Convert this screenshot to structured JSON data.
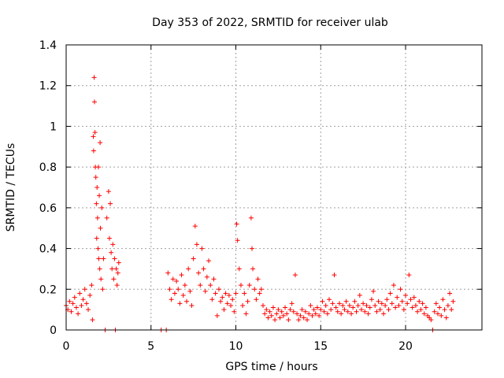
{
  "chart_data": {
    "type": "scatter",
    "title": "Day 353 of 2022, SRMTID for receiver ulab",
    "xlabel": "GPS time / hours",
    "ylabel": "SRMTID / TECUs",
    "xlim": [
      0,
      24.5
    ],
    "ylim": [
      0,
      1.4
    ],
    "x_ticks": [
      0,
      5,
      10,
      15,
      20
    ],
    "x_tick_labels": [
      "0",
      "5",
      "10",
      "15",
      "20"
    ],
    "y_ticks": [
      0,
      0.2,
      0.4,
      0.6,
      0.8,
      1.0,
      1.2,
      1.4
    ],
    "y_tick_labels": [
      "0",
      "0.2",
      "0.4",
      "0.6",
      "0.8",
      "1",
      "1.2",
      "1.4"
    ],
    "grid": true,
    "marker": "+",
    "color": "#ff0000",
    "series": [
      {
        "name": "SRMTID",
        "points": [
          [
            0.0,
            0.12
          ],
          [
            0.1,
            0.1
          ],
          [
            0.2,
            0.14
          ],
          [
            0.3,
            0.09
          ],
          [
            0.4,
            0.13
          ],
          [
            0.5,
            0.16
          ],
          [
            0.6,
            0.11
          ],
          [
            0.7,
            0.08
          ],
          [
            0.8,
            0.18
          ],
          [
            0.9,
            0.12
          ],
          [
            1.0,
            0.15
          ],
          [
            1.1,
            0.2
          ],
          [
            1.2,
            0.13
          ],
          [
            1.3,
            0.1
          ],
          [
            1.4,
            0.17
          ],
          [
            1.5,
            0.22
          ],
          [
            1.55,
            0.05
          ],
          [
            1.6,
            0.95
          ],
          [
            1.62,
            0.88
          ],
          [
            1.65,
            1.24
          ],
          [
            1.67,
            1.12
          ],
          [
            1.7,
            0.97
          ],
          [
            1.72,
            0.8
          ],
          [
            1.75,
            0.75
          ],
          [
            1.78,
            0.62
          ],
          [
            1.8,
            0.45
          ],
          [
            1.82,
            0.7
          ],
          [
            1.85,
            0.55
          ],
          [
            1.88,
            0.4
          ],
          [
            1.9,
            0.8
          ],
          [
            1.92,
            0.35
          ],
          [
            1.95,
            0.66
          ],
          [
            1.98,
            0.3
          ],
          [
            2.0,
            0.92
          ],
          [
            2.02,
            0.5
          ],
          [
            2.05,
            0.25
          ],
          [
            2.1,
            0.6
          ],
          [
            2.15,
            0.2
          ],
          [
            2.2,
            0.35
          ],
          [
            2.3,
            0.0
          ],
          [
            2.4,
            0.55
          ],
          [
            2.5,
            0.68
          ],
          [
            2.55,
            0.45
          ],
          [
            2.6,
            0.62
          ],
          [
            2.65,
            0.38
          ],
          [
            2.7,
            0.3
          ],
          [
            2.75,
            0.42
          ],
          [
            2.8,
            0.25
          ],
          [
            2.85,
            0.35
          ],
          [
            2.9,
            0.0
          ],
          [
            2.95,
            0.3
          ],
          [
            3.0,
            0.22
          ],
          [
            3.05,
            0.28
          ],
          [
            3.1,
            0.33
          ],
          [
            5.6,
            0.0
          ],
          [
            5.9,
            0.0
          ],
          [
            6.0,
            0.28
          ],
          [
            6.1,
            0.2
          ],
          [
            6.2,
            0.15
          ],
          [
            6.3,
            0.25
          ],
          [
            6.4,
            0.18
          ],
          [
            6.5,
            0.24
          ],
          [
            6.6,
            0.2
          ],
          [
            6.7,
            0.13
          ],
          [
            6.8,
            0.27
          ],
          [
            6.9,
            0.17
          ],
          [
            7.0,
            0.22
          ],
          [
            7.1,
            0.14
          ],
          [
            7.2,
            0.3
          ],
          [
            7.3,
            0.19
          ],
          [
            7.4,
            0.12
          ],
          [
            7.5,
            0.35
          ],
          [
            7.6,
            0.51
          ],
          [
            7.7,
            0.42
          ],
          [
            7.8,
            0.28
          ],
          [
            7.9,
            0.22
          ],
          [
            8.0,
            0.4
          ],
          [
            8.1,
            0.3
          ],
          [
            8.2,
            0.19
          ],
          [
            8.3,
            0.26
          ],
          [
            8.4,
            0.34
          ],
          [
            8.5,
            0.22
          ],
          [
            8.6,
            0.15
          ],
          [
            8.7,
            0.25
          ],
          [
            8.8,
            0.18
          ],
          [
            8.9,
            0.07
          ],
          [
            9.0,
            0.2
          ],
          [
            9.1,
            0.14
          ],
          [
            9.2,
            0.16
          ],
          [
            9.3,
            0.1
          ],
          [
            9.4,
            0.18
          ],
          [
            9.5,
            0.13
          ],
          [
            9.6,
            0.17
          ],
          [
            9.7,
            0.12
          ],
          [
            9.8,
            0.15
          ],
          [
            9.9,
            0.09
          ],
          [
            10.0,
            0.18
          ],
          [
            10.05,
            0.52
          ],
          [
            10.1,
            0.44
          ],
          [
            10.2,
            0.3
          ],
          [
            10.3,
            0.22
          ],
          [
            10.4,
            0.12
          ],
          [
            10.5,
            0.18
          ],
          [
            10.6,
            0.08
          ],
          [
            10.7,
            0.14
          ],
          [
            10.8,
            0.22
          ],
          [
            10.9,
            0.55
          ],
          [
            10.95,
            0.4
          ],
          [
            11.0,
            0.3
          ],
          [
            11.1,
            0.2
          ],
          [
            11.2,
            0.15
          ],
          [
            11.3,
            0.25
          ],
          [
            11.4,
            0.18
          ],
          [
            11.5,
            0.2
          ],
          [
            11.6,
            0.12
          ],
          [
            11.7,
            0.08
          ],
          [
            11.8,
            0.1
          ],
          [
            11.9,
            0.06
          ],
          [
            12.0,
            0.09
          ],
          [
            12.1,
            0.07
          ],
          [
            12.2,
            0.11
          ],
          [
            12.3,
            0.05
          ],
          [
            12.4,
            0.08
          ],
          [
            12.5,
            0.1
          ],
          [
            12.6,
            0.06
          ],
          [
            12.7,
            0.09
          ],
          [
            12.8,
            0.07
          ],
          [
            12.9,
            0.11
          ],
          [
            13.0,
            0.08
          ],
          [
            13.1,
            0.05
          ],
          [
            13.2,
            0.1
          ],
          [
            13.3,
            0.13
          ],
          [
            13.4,
            0.09
          ],
          [
            13.5,
            0.27
          ],
          [
            13.6,
            0.08
          ],
          [
            13.7,
            0.05
          ],
          [
            13.8,
            0.07
          ],
          [
            13.9,
            0.1
          ],
          [
            14.0,
            0.06
          ],
          [
            14.1,
            0.09
          ],
          [
            14.2,
            0.05
          ],
          [
            14.3,
            0.08
          ],
          [
            14.4,
            0.12
          ],
          [
            14.5,
            0.07
          ],
          [
            14.6,
            0.1
          ],
          [
            14.7,
            0.08
          ],
          [
            14.8,
            0.11
          ],
          [
            14.9,
            0.07
          ],
          [
            15.0,
            0.1
          ],
          [
            15.1,
            0.14
          ],
          [
            15.2,
            0.09
          ],
          [
            15.3,
            0.12
          ],
          [
            15.4,
            0.08
          ],
          [
            15.5,
            0.15
          ],
          [
            15.6,
            0.1
          ],
          [
            15.7,
            0.13
          ],
          [
            15.8,
            0.27
          ],
          [
            15.9,
            0.11
          ],
          [
            16.0,
            0.09
          ],
          [
            16.1,
            0.13
          ],
          [
            16.2,
            0.08
          ],
          [
            16.3,
            0.12
          ],
          [
            16.4,
            0.1
          ],
          [
            16.5,
            0.14
          ],
          [
            16.6,
            0.09
          ],
          [
            16.7,
            0.12
          ],
          [
            16.8,
            0.08
          ],
          [
            16.9,
            0.11
          ],
          [
            17.0,
            0.14
          ],
          [
            17.1,
            0.09
          ],
          [
            17.2,
            0.12
          ],
          [
            17.3,
            0.17
          ],
          [
            17.4,
            0.1
          ],
          [
            17.5,
            0.13
          ],
          [
            17.6,
            0.09
          ],
          [
            17.7,
            0.12
          ],
          [
            17.8,
            0.08
          ],
          [
            17.9,
            0.11
          ],
          [
            18.0,
            0.15
          ],
          [
            18.1,
            0.19
          ],
          [
            18.2,
            0.12
          ],
          [
            18.3,
            0.09
          ],
          [
            18.4,
            0.14
          ],
          [
            18.5,
            0.1
          ],
          [
            18.6,
            0.13
          ],
          [
            18.7,
            0.08
          ],
          [
            18.8,
            0.12
          ],
          [
            18.9,
            0.15
          ],
          [
            19.0,
            0.1
          ],
          [
            19.1,
            0.18
          ],
          [
            19.2,
            0.13
          ],
          [
            19.3,
            0.22
          ],
          [
            19.4,
            0.11
          ],
          [
            19.5,
            0.16
          ],
          [
            19.6,
            0.12
          ],
          [
            19.7,
            0.2
          ],
          [
            19.8,
            0.14
          ],
          [
            19.9,
            0.1
          ],
          [
            20.0,
            0.17
          ],
          [
            20.1,
            0.13
          ],
          [
            20.2,
            0.27
          ],
          [
            20.3,
            0.15
          ],
          [
            20.4,
            0.11
          ],
          [
            20.5,
            0.16
          ],
          [
            20.6,
            0.12
          ],
          [
            20.7,
            0.09
          ],
          [
            20.8,
            0.14
          ],
          [
            20.9,
            0.1
          ],
          [
            21.0,
            0.13
          ],
          [
            21.1,
            0.08
          ],
          [
            21.2,
            0.11
          ],
          [
            21.3,
            0.07
          ],
          [
            21.4,
            0.06
          ],
          [
            21.5,
            0.05
          ],
          [
            21.6,
            0.0
          ],
          [
            21.7,
            0.09
          ],
          [
            21.8,
            0.13
          ],
          [
            21.9,
            0.08
          ],
          [
            22.0,
            0.11
          ],
          [
            22.1,
            0.07
          ],
          [
            22.2,
            0.15
          ],
          [
            22.3,
            0.1
          ],
          [
            22.4,
            0.06
          ],
          [
            22.5,
            0.12
          ],
          [
            22.6,
            0.18
          ],
          [
            22.7,
            0.1
          ],
          [
            22.8,
            0.14
          ]
        ]
      }
    ]
  }
}
